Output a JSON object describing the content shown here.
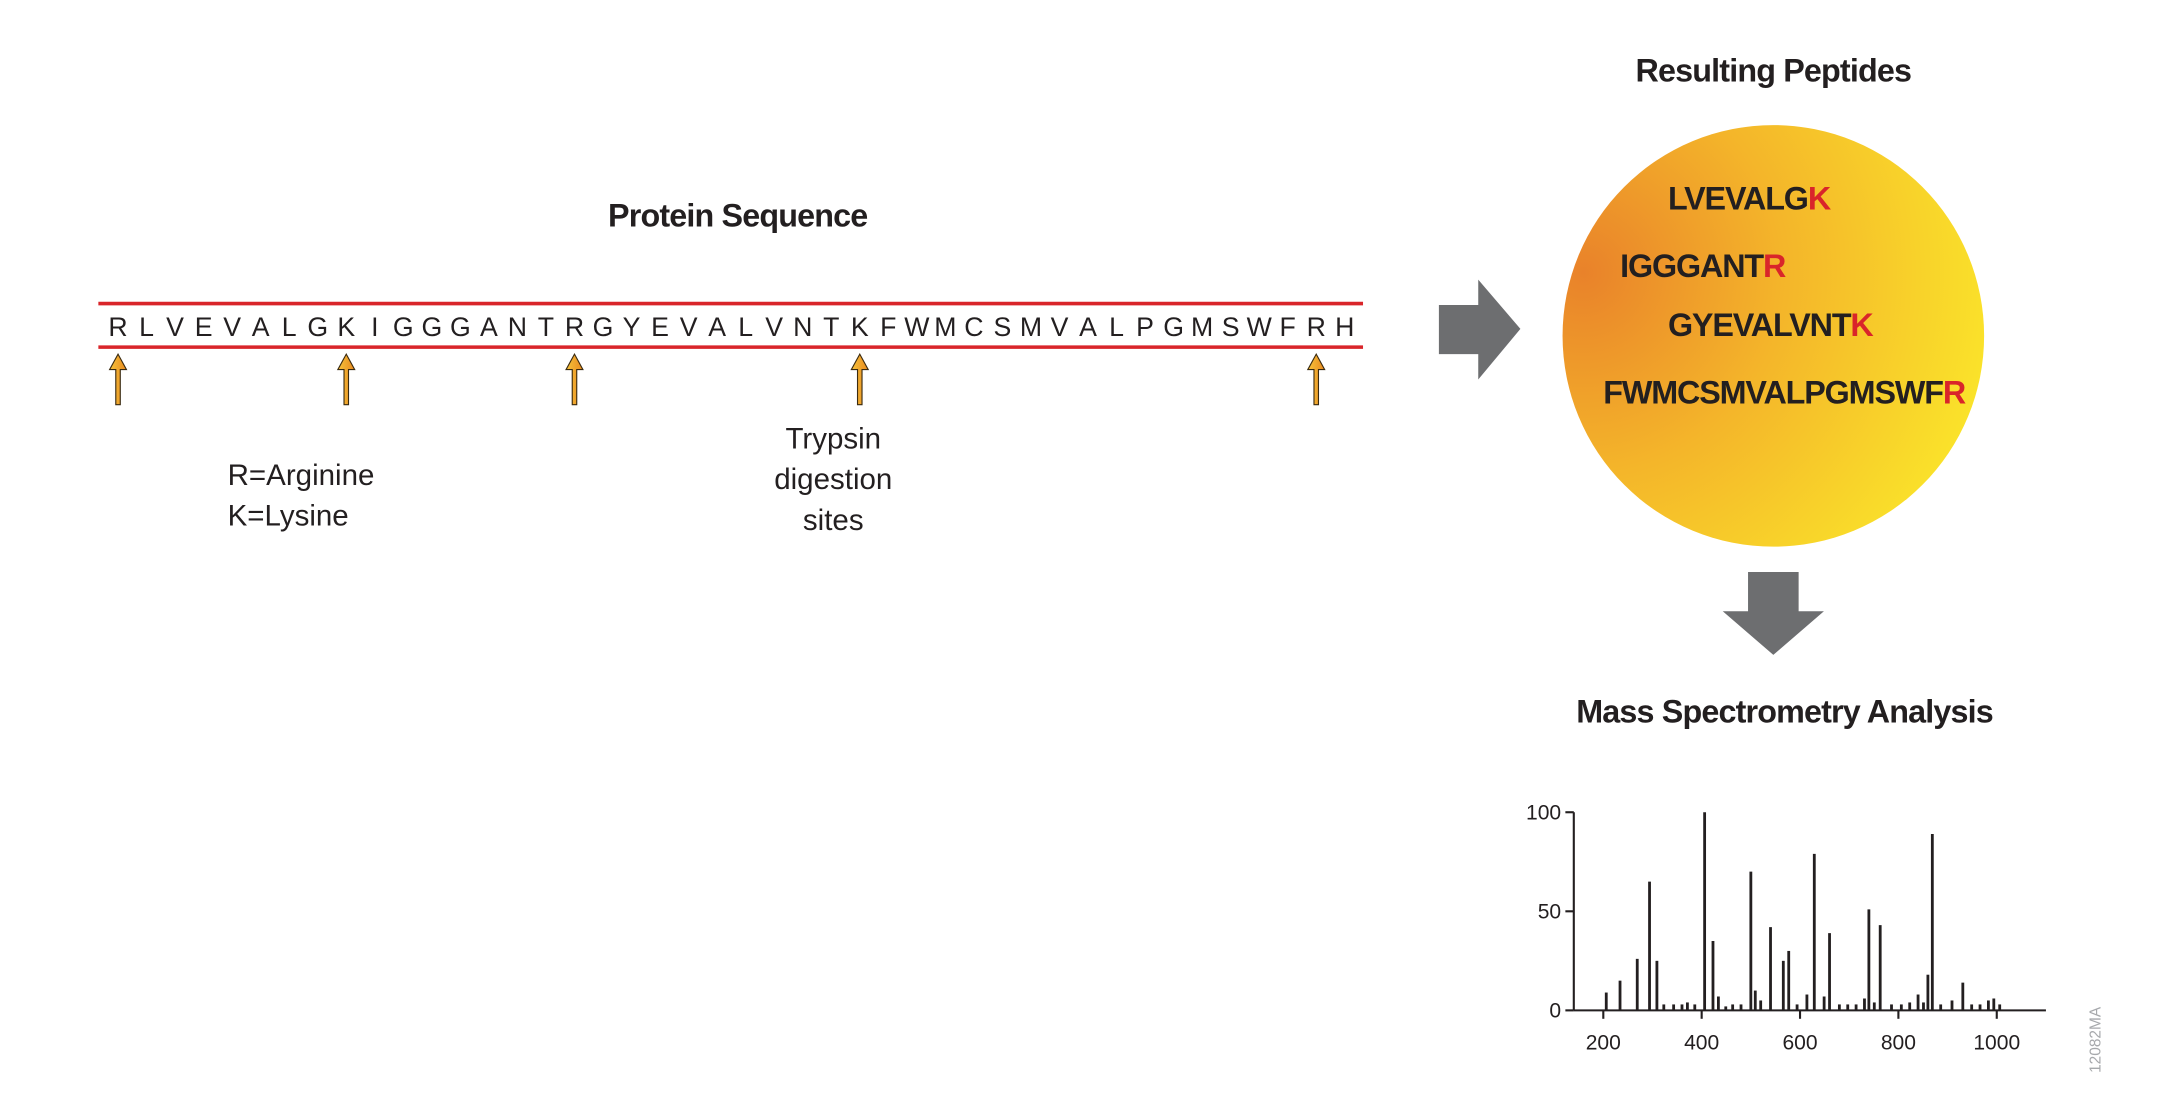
{
  "protein": {
    "title": "Protein Sequence",
    "sequence": [
      "R",
      "L",
      "V",
      "E",
      "V",
      "A",
      "L",
      "G",
      "K",
      "I",
      "G",
      "G",
      "G",
      "A",
      "N",
      "T",
      "R",
      "G",
      "Y",
      "E",
      "V",
      "A",
      "L",
      "V",
      "N",
      "T",
      "K",
      "F",
      "W",
      "M",
      "C",
      "S",
      "M",
      "V",
      "A",
      "L",
      "P",
      "G",
      "M",
      "S",
      "W",
      "F",
      "R",
      "H"
    ],
    "cleavage_sites": [
      0,
      8,
      16,
      26,
      42
    ],
    "site_color": "#d9252a",
    "legend": [
      "R=Arginine",
      "K=Lysine"
    ],
    "site_label": [
      "Trypsin",
      "digestion",
      "sites"
    ]
  },
  "peptides": {
    "title": "Resulting Peptides",
    "items": [
      {
        "body": "LVEVALG",
        "site": "K"
      },
      {
        "body": "IGGGANT",
        "site": "R"
      },
      {
        "body": "GYEVALVNT",
        "site": "K"
      },
      {
        "body": "FWMCSMVALPGMSWF",
        "site": "R"
      }
    ]
  },
  "analysis": {
    "title": "Mass Spectrometry Analysis"
  },
  "chart_data": {
    "type": "spectrum",
    "color": "#231f20",
    "x": [
      206,
      234,
      269,
      294,
      309,
      323,
      343,
      360,
      371,
      386,
      406,
      423,
      434,
      449,
      463,
      480,
      500,
      509,
      520,
      540,
      566,
      577,
      594,
      614,
      629,
      649,
      660,
      680,
      697,
      714,
      731,
      740,
      751,
      763,
      786,
      806,
      823,
      840,
      851,
      860,
      869,
      886,
      909,
      931,
      949,
      966,
      983,
      994,
      1006
    ],
    "values": [
      9,
      15,
      26,
      65,
      25,
      3,
      3,
      3,
      4,
      3,
      100,
      35,
      7,
      2,
      3,
      3,
      70,
      10,
      5,
      42,
      25,
      30,
      3,
      8,
      79,
      7,
      39,
      3,
      3,
      3,
      6,
      51,
      4,
      43,
      3,
      3,
      4,
      8,
      4,
      18,
      89,
      3,
      5,
      14,
      3,
      3,
      5,
      6,
      3
    ],
    "xlim": [
      140,
      1100
    ],
    "ylim": [
      0,
      100
    ],
    "xticks": [
      200,
      400,
      600,
      800,
      1000
    ],
    "yticks": [
      0,
      50,
      100
    ]
  },
  "figure_id": "12082MA"
}
